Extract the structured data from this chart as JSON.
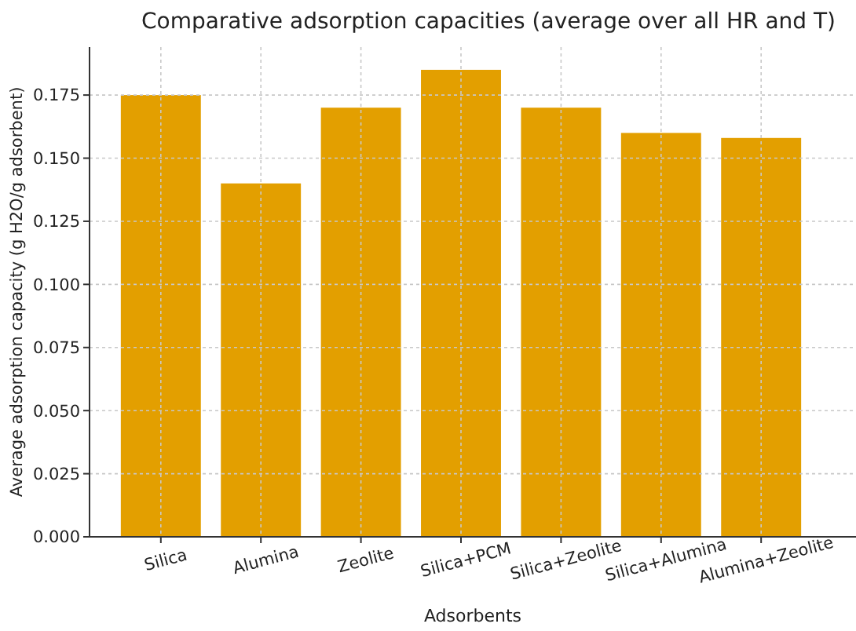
{
  "chart_data": {
    "type": "bar",
    "title": "Comparative adsorption capacities (average over all HR and T)",
    "xlabel": "Adsorbents",
    "ylabel": "Average adsorption capacity (g H2O/g adsorbent)",
    "categories": [
      "Silica",
      "Alumina",
      "Zeolite",
      "Silica+PCM",
      "Silica+Zeolite",
      "Silica+Alumina",
      "Alumina+Zeolite"
    ],
    "values": [
      0.175,
      0.14,
      0.17,
      0.185,
      0.17,
      0.16,
      0.158
    ],
    "color": "#e39f00",
    "ylim": [
      0,
      0.194
    ],
    "yticks": [
      {
        "value": 0,
        "label": "0.000"
      },
      {
        "value": 0.025,
        "label": "0.025"
      },
      {
        "value": 0.05,
        "label": "0.050"
      },
      {
        "value": 0.075,
        "label": "0.075"
      },
      {
        "value": 0.1,
        "label": "0.100"
      },
      {
        "value": 0.125,
        "label": "0.125"
      },
      {
        "value": 0.15,
        "label": "0.150"
      },
      {
        "value": 0.175,
        "label": "0.175"
      }
    ],
    "grid": true
  }
}
